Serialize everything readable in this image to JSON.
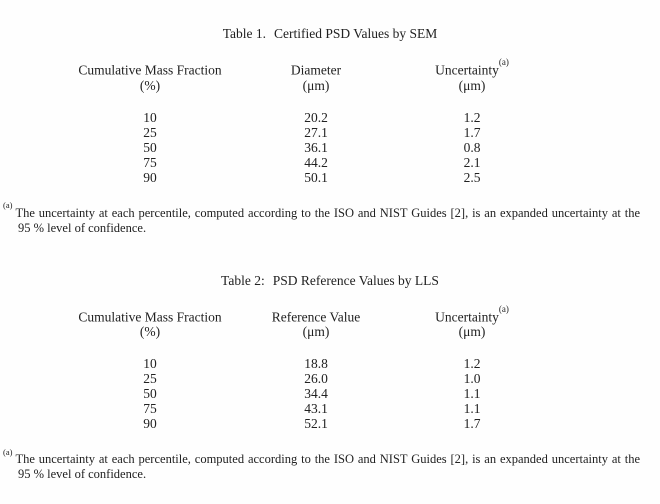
{
  "page": {
    "background": "#fefefe",
    "text_color": "#212121"
  },
  "tables": [
    {
      "title_prefix": "Table 1.",
      "title_text": "Certified PSD Values by SEM",
      "columns": [
        {
          "label": "Cumulative Mass Fraction",
          "unit": "(%)"
        },
        {
          "label": "Diameter",
          "unit": "(μm)"
        },
        {
          "label": "Uncertainty",
          "sup": "(a)",
          "unit": "(μm)"
        }
      ],
      "rows": [
        [
          "10",
          "20.2",
          "1.2"
        ],
        [
          "25",
          "27.1",
          "1.7"
        ],
        [
          "50",
          "36.1",
          "0.8"
        ],
        [
          "75",
          "44.2",
          "2.1"
        ],
        [
          "90",
          "50.1",
          "2.5"
        ]
      ],
      "footnote": {
        "marker": "(a)",
        "line1": "The uncertainty at each percentile, computed according to the ISO and NIST Guides [2], is an expanded uncertainty at the",
        "line2": "95 % level of confidence."
      }
    },
    {
      "title_prefix": "Table 2:",
      "title_text": "PSD Reference Values by LLS",
      "columns": [
        {
          "label": "Cumulative Mass Fraction",
          "unit": "(%)"
        },
        {
          "label": "Reference Value",
          "unit": "(μm)"
        },
        {
          "label": "Uncertainty",
          "sup": "(a)",
          "unit": "(μm)"
        }
      ],
      "rows": [
        [
          "10",
          "18.8",
          "1.2"
        ],
        [
          "25",
          "26.0",
          "1.0"
        ],
        [
          "50",
          "34.4",
          "1.1"
        ],
        [
          "75",
          "43.1",
          "1.1"
        ],
        [
          "90",
          "52.1",
          "1.7"
        ]
      ],
      "footnote": {
        "marker": "(a)",
        "line1": "The uncertainty at each percentile, computed according to the ISO and NIST Guides [2], is an expanded uncertainty at the",
        "line2": "95 % level of confidence."
      }
    }
  ]
}
